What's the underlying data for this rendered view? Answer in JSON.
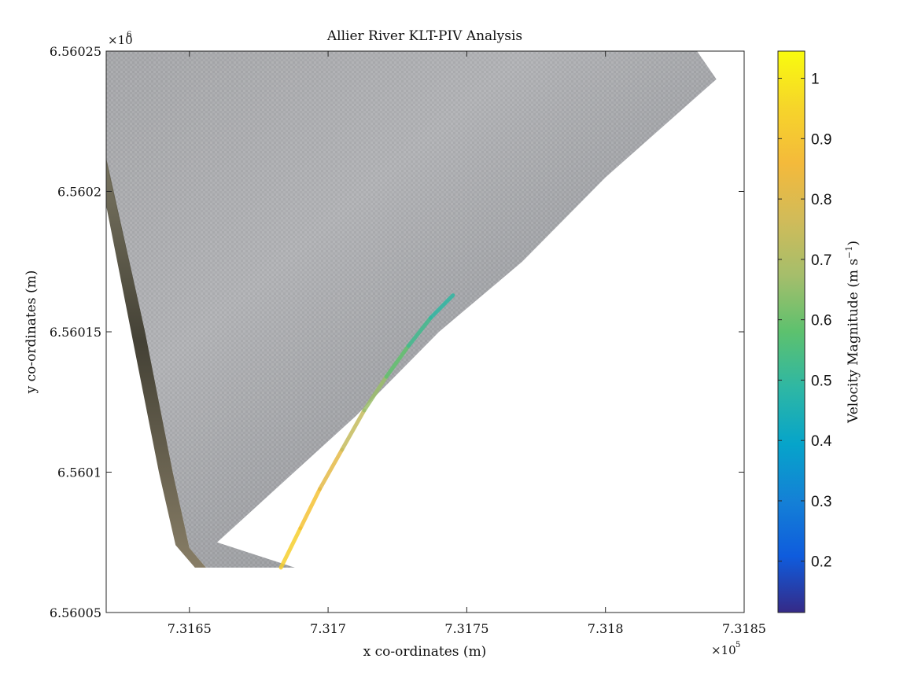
{
  "chart_data": {
    "type": "scatter",
    "title": "Allier River KLT-PIV Analysis",
    "xlabel": "x co-ordinates (m)",
    "ylabel": "y co-ordinates (m)",
    "x_exponent": "×10",
    "x_exponent_power": "5",
    "y_exponent": "×10",
    "y_exponent_power": "6",
    "xlim": [
      731620,
      731850
    ],
    "ylim": [
      6560050,
      6560250
    ],
    "x_ticks": [
      731650,
      731700,
      731750,
      731800,
      731850
    ],
    "x_tick_labels": [
      "7.3165",
      "7.317",
      "7.3175",
      "7.318",
      "7.3185"
    ],
    "y_ticks": [
      6560050,
      6560100,
      6560150,
      6560200,
      6560250
    ],
    "y_tick_labels": [
      "6.56005",
      "6.5601",
      "6.56015",
      "6.5602",
      "6.56025"
    ],
    "grid": false,
    "background_image": "orthorectified grey river surface with vegetated left bank",
    "river_surface_outline": [
      [
        731620,
        6560250
      ],
      [
        731833,
        6560250
      ],
      [
        731840,
        6560240
      ],
      [
        731800,
        6560205
      ],
      [
        731770,
        6560175
      ],
      [
        731740,
        6560150
      ],
      [
        731710,
        6560120
      ],
      [
        731660,
        6560075
      ],
      [
        731688,
        6560066
      ],
      [
        731656,
        6560066
      ],
      [
        731650,
        6560073
      ],
      [
        731644,
        6560100
      ],
      [
        731634,
        6560150
      ],
      [
        731620,
        6560210
      ]
    ],
    "velocity_track": {
      "x": [
        731683,
        731690,
        731697,
        731705,
        731713,
        731721,
        731729,
        731737,
        731745
      ],
      "y": [
        6560066,
        6560080,
        6560094,
        6560108,
        6560122,
        6560134,
        6560145,
        6560155,
        6560163
      ],
      "velocity": [
        0.95,
        0.91,
        0.86,
        0.78,
        0.7,
        0.62,
        0.55,
        0.5,
        0.48
      ]
    },
    "colorbar": {
      "label": "Velocity Magnitude (m s",
      "label_exponent": "−1",
      "label_close": ")",
      "colormap": "parula",
      "clim": [
        0.115,
        1.045
      ],
      "ticks": [
        0.2,
        0.3,
        0.4,
        0.5,
        0.6,
        0.7,
        0.8,
        0.9,
        1
      ],
      "tick_labels": [
        "0.2",
        "0.3",
        "0.4",
        "0.5",
        "0.6",
        "0.7",
        "0.8",
        "0.9",
        "1"
      ]
    }
  }
}
